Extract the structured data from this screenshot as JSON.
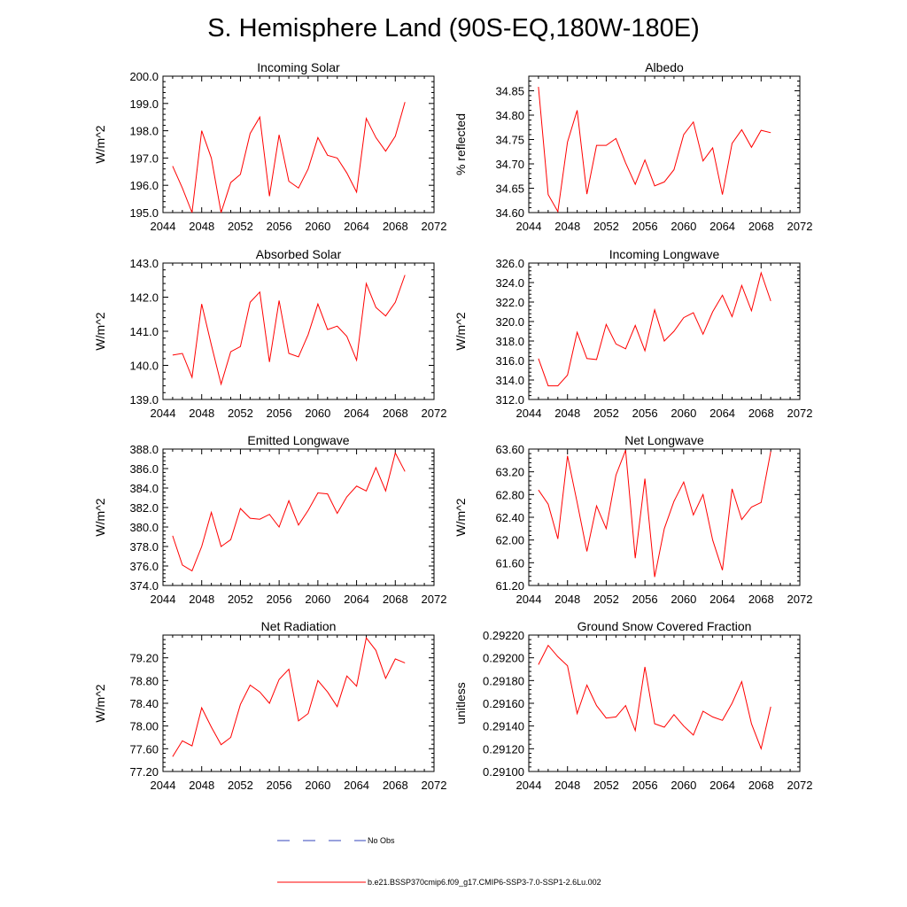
{
  "title": "S. Hemisphere Land (90S-EQ,180W-180E)",
  "colors": {
    "model_line": "#ff0000",
    "obs_line": "#3344bb",
    "axis": "#000000"
  },
  "legend": {
    "obs_label": "No Obs",
    "model_label": "b.e21.BSSP370cmip6.f09_g17.CMIP6-SSP3-7.0-SSP1-2.6Lu.002"
  },
  "chart_data": [
    {
      "type": "line",
      "title": "Incoming Solar",
      "xlabel": "",
      "ylabel": "W/m^2",
      "xlim": [
        2044,
        2072
      ],
      "ylim": [
        195.0,
        200.0
      ],
      "xticks": [
        2044,
        2048,
        2052,
        2056,
        2060,
        2064,
        2068,
        2072
      ],
      "yticks": [
        195.0,
        196.0,
        197.0,
        198.0,
        199.0,
        200.0
      ],
      "ydecimals": 1,
      "x": [
        2045,
        2046,
        2047,
        2048,
        2049,
        2050,
        2051,
        2052,
        2053,
        2054,
        2055,
        2056,
        2057,
        2058,
        2059,
        2060,
        2061,
        2062,
        2063,
        2064,
        2065,
        2066,
        2067,
        2068,
        2069
      ],
      "series": [
        {
          "values": [
            196.7,
            195.9,
            195.0,
            198.0,
            197.0,
            195.0,
            196.1,
            196.4,
            197.9,
            198.5,
            195.6,
            197.85,
            196.15,
            195.9,
            196.6,
            197.75,
            197.1,
            197.0,
            196.45,
            195.75,
            198.45,
            197.75,
            197.25,
            197.8,
            199.05
          ]
        }
      ]
    },
    {
      "type": "line",
      "title": "Albedo",
      "xlabel": "",
      "ylabel": "% reflected",
      "xlim": [
        2044,
        2072
      ],
      "ylim": [
        34.6,
        34.88
      ],
      "xticks": [
        2044,
        2048,
        2052,
        2056,
        2060,
        2064,
        2068,
        2072
      ],
      "yticks": [
        34.6,
        34.65,
        34.7,
        34.75,
        34.8,
        34.85
      ],
      "ydecimals": 2,
      "x": [
        2045,
        2046,
        2047,
        2048,
        2049,
        2050,
        2051,
        2052,
        2053,
        2054,
        2055,
        2056,
        2057,
        2058,
        2059,
        2060,
        2061,
        2062,
        2063,
        2064,
        2065,
        2066,
        2067,
        2068,
        2069
      ],
      "series": [
        {
          "values": [
            34.858,
            34.637,
            34.602,
            34.745,
            34.81,
            34.638,
            34.738,
            34.738,
            34.752,
            34.702,
            34.658,
            34.708,
            34.655,
            34.663,
            34.688,
            34.76,
            34.786,
            34.706,
            34.733,
            34.637,
            34.742,
            34.77,
            34.734,
            34.769,
            34.764
          ]
        }
      ]
    },
    {
      "type": "line",
      "title": "Absorbed Solar",
      "xlabel": "",
      "ylabel": "W/m^2",
      "xlim": [
        2044,
        2072
      ],
      "ylim": [
        139.0,
        143.0
      ],
      "xticks": [
        2044,
        2048,
        2052,
        2056,
        2060,
        2064,
        2068,
        2072
      ],
      "yticks": [
        139.0,
        140.0,
        141.0,
        142.0,
        143.0
      ],
      "ydecimals": 1,
      "x": [
        2045,
        2046,
        2047,
        2048,
        2049,
        2050,
        2051,
        2052,
        2053,
        2054,
        2055,
        2056,
        2057,
        2058,
        2059,
        2060,
        2061,
        2062,
        2063,
        2064,
        2065,
        2066,
        2067,
        2068,
        2069
      ],
      "series": [
        {
          "values": [
            140.3,
            140.35,
            139.65,
            141.8,
            140.6,
            139.45,
            140.4,
            140.55,
            141.85,
            142.15,
            140.1,
            141.9,
            140.35,
            140.25,
            140.9,
            141.8,
            141.05,
            141.15,
            140.85,
            140.15,
            142.4,
            141.7,
            141.45,
            141.85,
            142.65
          ]
        }
      ]
    },
    {
      "type": "line",
      "title": "Incoming Longwave",
      "xlabel": "",
      "ylabel": "W/m^2",
      "xlim": [
        2044,
        2072
      ],
      "ylim": [
        312.0,
        326.0
      ],
      "xticks": [
        2044,
        2048,
        2052,
        2056,
        2060,
        2064,
        2068,
        2072
      ],
      "yticks": [
        312.0,
        314.0,
        316.0,
        318.0,
        320.0,
        322.0,
        324.0,
        326.0
      ],
      "ydecimals": 1,
      "x": [
        2045,
        2046,
        2047,
        2048,
        2049,
        2050,
        2051,
        2052,
        2053,
        2054,
        2055,
        2056,
        2057,
        2058,
        2059,
        2060,
        2061,
        2062,
        2063,
        2064,
        2065,
        2066,
        2067,
        2068,
        2069
      ],
      "series": [
        {
          "values": [
            316.2,
            313.4,
            313.4,
            314.5,
            318.9,
            316.2,
            316.1,
            319.7,
            317.7,
            317.2,
            319.6,
            317.0,
            321.2,
            318.0,
            319.0,
            320.4,
            320.9,
            318.7,
            321.0,
            322.7,
            320.5,
            323.7,
            321.1,
            325.0,
            322.1
          ]
        }
      ]
    },
    {
      "type": "line",
      "title": "Emitted Longwave",
      "xlabel": "",
      "ylabel": "W/m^2",
      "xlim": [
        2044,
        2072
      ],
      "ylim": [
        374.0,
        388.0
      ],
      "xticks": [
        2044,
        2048,
        2052,
        2056,
        2060,
        2064,
        2068,
        2072
      ],
      "yticks": [
        374.0,
        376.0,
        378.0,
        380.0,
        382.0,
        384.0,
        386.0,
        388.0
      ],
      "ydecimals": 1,
      "x": [
        2045,
        2046,
        2047,
        2048,
        2049,
        2050,
        2051,
        2052,
        2053,
        2054,
        2055,
        2056,
        2057,
        2058,
        2059,
        2060,
        2061,
        2062,
        2063,
        2064,
        2065,
        2066,
        2067,
        2068,
        2069
      ],
      "series": [
        {
          "values": [
            379.1,
            376.1,
            375.5,
            378.0,
            381.5,
            378.0,
            378.7,
            381.9,
            380.9,
            380.8,
            381.3,
            380.0,
            382.7,
            380.2,
            381.7,
            383.5,
            383.4,
            381.4,
            383.1,
            384.2,
            383.7,
            386.1,
            383.7,
            387.6,
            385.7
          ]
        }
      ]
    },
    {
      "type": "line",
      "title": "Net Longwave",
      "xlabel": "",
      "ylabel": "W/m^2",
      "xlim": [
        2044,
        2072
      ],
      "ylim": [
        61.2,
        63.6
      ],
      "xticks": [
        2044,
        2048,
        2052,
        2056,
        2060,
        2064,
        2068,
        2072
      ],
      "yticks": [
        61.2,
        61.6,
        62.0,
        62.4,
        62.8,
        63.2,
        63.6
      ],
      "ydecimals": 2,
      "x": [
        2045,
        2046,
        2047,
        2048,
        2049,
        2050,
        2051,
        2052,
        2053,
        2054,
        2055,
        2056,
        2057,
        2058,
        2059,
        2060,
        2061,
        2062,
        2063,
        2064,
        2065,
        2066,
        2067,
        2068,
        2069
      ],
      "series": [
        {
          "values": [
            62.88,
            62.63,
            62.02,
            63.48,
            62.66,
            61.8,
            62.6,
            62.2,
            63.14,
            63.58,
            61.68,
            63.08,
            61.35,
            62.2,
            62.68,
            63.02,
            62.44,
            62.8,
            62.0,
            61.47,
            62.9,
            62.36,
            62.58,
            62.66,
            63.56
          ]
        }
      ]
    },
    {
      "type": "line",
      "title": "Net Radiation",
      "xlabel": "",
      "ylabel": "W/m^2",
      "xlim": [
        2044,
        2072
      ],
      "ylim": [
        77.2,
        79.6
      ],
      "xticks": [
        2044,
        2048,
        2052,
        2056,
        2060,
        2064,
        2068,
        2072
      ],
      "yticks": [
        77.2,
        77.6,
        78.0,
        78.4,
        78.8,
        79.2
      ],
      "ydecimals": 2,
      "x": [
        2045,
        2046,
        2047,
        2048,
        2049,
        2050,
        2051,
        2052,
        2053,
        2054,
        2055,
        2056,
        2057,
        2058,
        2059,
        2060,
        2061,
        2062,
        2063,
        2064,
        2065,
        2066,
        2067,
        2068,
        2069
      ],
      "series": [
        {
          "values": [
            77.46,
            77.74,
            77.65,
            78.32,
            77.98,
            77.67,
            77.8,
            78.38,
            78.72,
            78.6,
            78.4,
            78.82,
            79.0,
            78.09,
            78.22,
            78.8,
            78.6,
            78.34,
            78.88,
            78.7,
            79.55,
            79.33,
            78.84,
            79.18,
            79.11
          ]
        }
      ]
    },
    {
      "type": "line",
      "title": "Ground Snow Covered Fraction",
      "xlabel": "",
      "ylabel": "unitless",
      "xlim": [
        2044,
        2072
      ],
      "ylim": [
        0.291,
        0.2922
      ],
      "xticks": [
        2044,
        2048,
        2052,
        2056,
        2060,
        2064,
        2068,
        2072
      ],
      "yticks": [
        0.291,
        0.2912,
        0.2914,
        0.2916,
        0.2918,
        0.292,
        0.2922
      ],
      "ydecimals": 5,
      "x": [
        2045,
        2046,
        2047,
        2048,
        2049,
        2050,
        2051,
        2052,
        2053,
        2054,
        2055,
        2056,
        2057,
        2058,
        2059,
        2060,
        2061,
        2062,
        2063,
        2064,
        2065,
        2066,
        2067,
        2068,
        2069
      ],
      "series": [
        {
          "values": [
            0.29194,
            0.29211,
            0.29201,
            0.29193,
            0.29151,
            0.29176,
            0.29158,
            0.29147,
            0.29148,
            0.29158,
            0.29136,
            0.29192,
            0.29142,
            0.29139,
            0.2915,
            0.2914,
            0.29132,
            0.29153,
            0.29148,
            0.29145,
            0.2916,
            0.29179,
            0.29142,
            0.2912,
            0.29157
          ]
        }
      ]
    }
  ]
}
